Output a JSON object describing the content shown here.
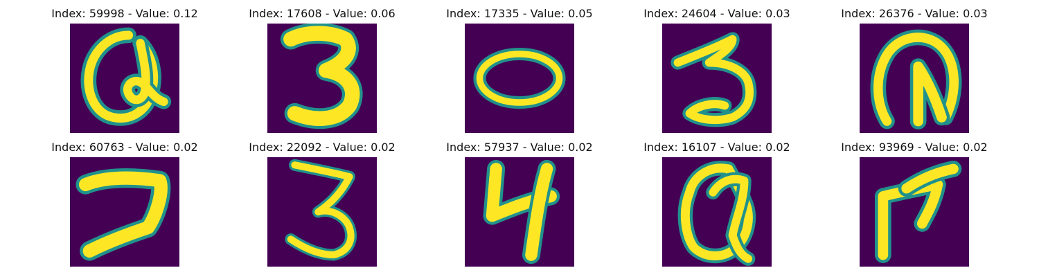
{
  "figure": {
    "background": "#ffffff",
    "colormap": "viridis",
    "colors": {
      "low": "#440154",
      "mid": "#21918c",
      "high": "#fde725"
    }
  },
  "samples": [
    {
      "title": "Index: 59998 - Value: 0.12",
      "index": "59998",
      "value": 0.12,
      "glyph": "handwritten loop resembling a",
      "row": 1,
      "col": 1
    },
    {
      "title": "Index: 17608 - Value: 0.06",
      "index": "17608",
      "value": 0.06,
      "glyph": "handwritten 3",
      "row": 1,
      "col": 2
    },
    {
      "title": "Index: 17335 - Value: 0.05",
      "index": "17335",
      "value": 0.05,
      "glyph": "handwritten 0",
      "row": 1,
      "col": 3
    },
    {
      "title": "Index: 24604 - Value: 0.03",
      "index": "24604",
      "value": 0.03,
      "glyph": "handwritten 3",
      "row": 1,
      "col": 4
    },
    {
      "title": "Index: 26376 - Value: 0.03",
      "index": "26376",
      "value": 0.03,
      "glyph": "handwritten loop glyph",
      "row": 1,
      "col": 5
    },
    {
      "title": "Index: 60763 - Value: 0.02",
      "index": "60763",
      "value": 0.02,
      "glyph": "handwritten 7",
      "row": 2,
      "col": 1
    },
    {
      "title": "Index: 22092 - Value: 0.02",
      "index": "22092",
      "value": 0.02,
      "glyph": "handwritten 3",
      "row": 2,
      "col": 2
    },
    {
      "title": "Index: 57937 - Value: 0.02",
      "index": "57937",
      "value": 0.02,
      "glyph": "handwritten 4",
      "row": 2,
      "col": 3
    },
    {
      "title": "Index: 16107 - Value: 0.02",
      "index": "16107",
      "value": 0.02,
      "glyph": "handwritten loop resembling a",
      "row": 2,
      "col": 4
    },
    {
      "title": "Index: 93969 - Value: 0.02",
      "index": "93969",
      "value": 0.02,
      "glyph": "handwritten stroke glyph",
      "row": 2,
      "col": 5
    }
  ]
}
